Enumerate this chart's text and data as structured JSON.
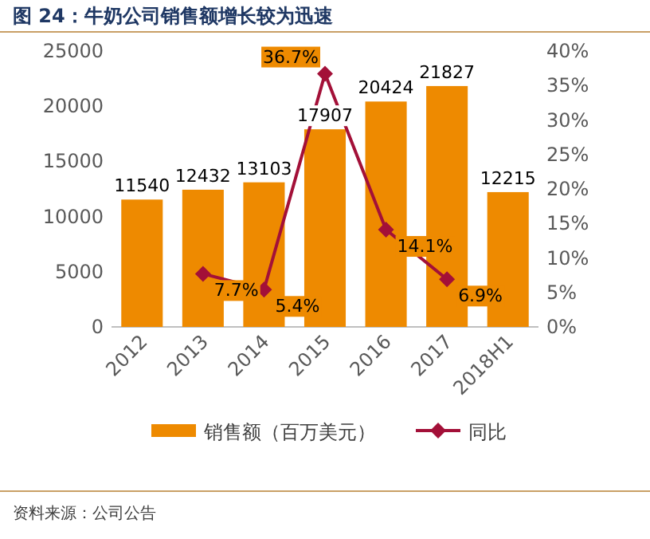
{
  "chart_data": {
    "type": "bar",
    "title": "图 24：牛奶公司销售额增长较为迅速",
    "categories": [
      "2012",
      "2013",
      "2014",
      "2015",
      "2016",
      "2017",
      "2018H1"
    ],
    "series": [
      {
        "name": "销售额（百万美元）",
        "color": "#ee8a00",
        "values": [
          11540,
          12432,
          13103,
          17907,
          20424,
          21827,
          12215
        ],
        "value_labels": [
          "11540",
          "12432",
          "13103",
          "17907",
          "20424",
          "21827",
          "12215"
        ]
      },
      {
        "name": "同比",
        "type": "line",
        "axis": "y2",
        "color": "#a31038",
        "values": [
          null,
          7.7,
          5.4,
          36.7,
          14.1,
          6.9,
          null
        ],
        "value_labels": [
          null,
          "7.7%",
          "5.4%",
          "36.7%",
          "14.1%",
          "6.9%",
          null
        ]
      }
    ],
    "ylim": [
      0,
      25000
    ],
    "yticks": [
      0,
      5000,
      10000,
      15000,
      20000,
      25000
    ],
    "y2lim": [
      0,
      40
    ],
    "y2ticks": [
      {
        "value": 0,
        "label": "0%"
      },
      {
        "value": 5,
        "label": "5%"
      },
      {
        "value": 10,
        "label": "10%"
      },
      {
        "value": 15,
        "label": "15%"
      },
      {
        "value": 20,
        "label": "20%"
      },
      {
        "value": 25,
        "label": "25%"
      },
      {
        "value": 30,
        "label": "30%"
      },
      {
        "value": 35,
        "label": "35%"
      },
      {
        "value": 40,
        "label": "40%"
      }
    ],
    "marker": "diamond",
    "legend": "bottom",
    "annotations": [
      "资料来源：公司公告"
    ]
  }
}
